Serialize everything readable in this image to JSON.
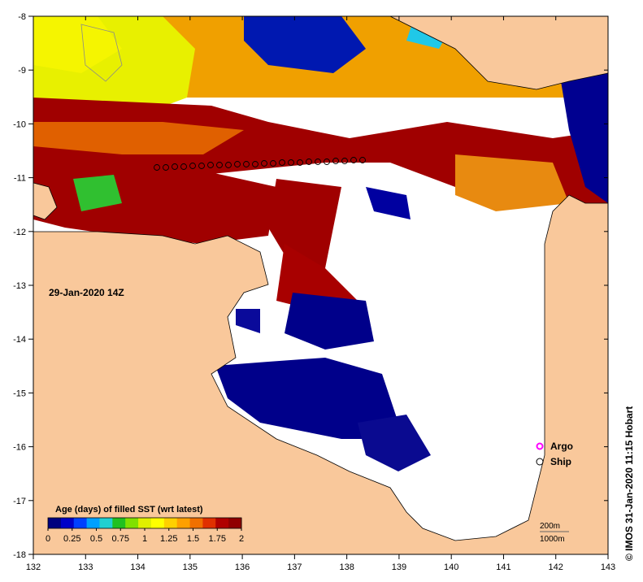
{
  "map": {
    "date_label": "29-Jan-2020 14Z",
    "credit": "© IMOS 31-Jan-2020 11:15 Hobart",
    "x_ticks": [
      "132",
      "133",
      "134",
      "135",
      "136",
      "137",
      "138",
      "139",
      "140",
      "141",
      "142",
      "143"
    ],
    "y_ticks": [
      "-8",
      "-9",
      "-10",
      "-11",
      "-12",
      "-13",
      "-14",
      "-15",
      "-16",
      "-17",
      "-18"
    ],
    "lon_range": [
      132,
      143
    ],
    "lat_range": [
      -18,
      -8
    ]
  },
  "legend": {
    "argo_label": "Argo",
    "ship_label": "Ship",
    "depth_200": "200m",
    "depth_1000": "1000m"
  },
  "colorbar": {
    "title": "Age (days) of filled SST (wrt latest)",
    "tick_labels": [
      "0",
      "0.25",
      "0.5",
      "0.75",
      "1",
      "1.25",
      "1.5",
      "1.75",
      "2"
    ],
    "colors": [
      "#00007f",
      "#0000c8",
      "#0040ff",
      "#00a0ff",
      "#20d0d0",
      "#20c020",
      "#80e000",
      "#e0f000",
      "#ffff00",
      "#ffd000",
      "#ffa000",
      "#f07000",
      "#e03000",
      "#b00000",
      "#900000"
    ]
  },
  "colors": {
    "land": "#f9c89b",
    "no_data": "#ffffff",
    "coast": "#000000"
  }
}
